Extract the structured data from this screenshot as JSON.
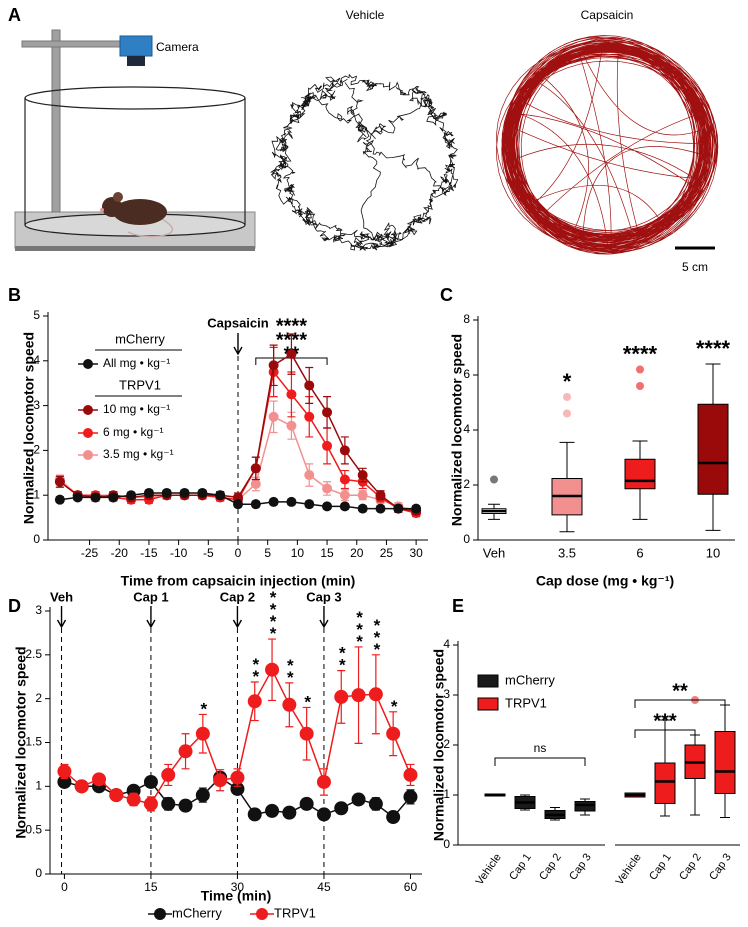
{
  "panel_labels": [
    "A",
    "B",
    "C",
    "D",
    "E"
  ],
  "panel_a": {
    "camera_label": "Camera",
    "titles": [
      "Vehicle",
      "Capsaicin"
    ],
    "scale_bar": "5 cm"
  },
  "chart_data": [
    {
      "type": "line",
      "xlabel": "Time from capsaicin injection (min)",
      "ylabel": "Normalized locomotor speed",
      "x": [
        -30,
        -27,
        -24,
        -21,
        -18,
        -15,
        -12,
        -9,
        -6,
        -3,
        0,
        3,
        6,
        9,
        12,
        15,
        18,
        21,
        24,
        27,
        30
      ],
      "xlim": [
        -32,
        32
      ],
      "xticks": [
        -25,
        -20,
        -15,
        -10,
        -5,
        0,
        5,
        10,
        15,
        20,
        25,
        30
      ],
      "ylim": [
        0,
        5
      ],
      "yticks": [
        0,
        1,
        2,
        3,
        4,
        5
      ],
      "legend_groups": [
        "mCherry",
        "TRPV1"
      ],
      "series": [
        {
          "name": "All mg • kg⁻¹",
          "color": "#111111",
          "values": [
            0.9,
            0.95,
            0.95,
            0.95,
            1.0,
            1.05,
            1.05,
            1.05,
            1.05,
            1.0,
            0.8,
            0.8,
            0.85,
            0.85,
            0.8,
            0.75,
            0.75,
            0.7,
            0.7,
            0.7,
            0.7
          ],
          "errors": [
            0.06,
            0.06,
            0.06,
            0.06,
            0.06,
            0.06,
            0.06,
            0.06,
            0.06,
            0.06,
            0.06,
            0.06,
            0.06,
            0.06,
            0.06,
            0.06,
            0.06,
            0.06,
            0.06,
            0.06,
            0.06
          ]
        },
        {
          "name": "10 mg • kg⁻¹",
          "color": "#9b0a0a",
          "values": [
            1.3,
            1.0,
            0.95,
            1.0,
            0.95,
            1.0,
            1.0,
            1.0,
            1.0,
            1.0,
            0.95,
            1.6,
            3.9,
            4.15,
            3.45,
            2.85,
            2.0,
            1.45,
            1.0,
            0.7,
            0.65
          ],
          "errors": [
            0.12,
            0.08,
            0.08,
            0.08,
            0.08,
            0.08,
            0.08,
            0.08,
            0.08,
            0.08,
            0.1,
            0.25,
            0.45,
            0.45,
            0.4,
            0.35,
            0.3,
            0.15,
            0.1,
            0.08,
            0.08
          ]
        },
        {
          "name": "6 mg • kg⁻¹",
          "color": "#ee1c1c",
          "values": [
            1.3,
            1.0,
            1.0,
            0.95,
            0.9,
            0.9,
            1.0,
            1.0,
            1.0,
            0.95,
            0.9,
            1.6,
            3.75,
            3.25,
            2.75,
            2.1,
            1.35,
            1.3,
            0.95,
            0.7,
            0.6
          ],
          "errors": [
            0.12,
            0.08,
            0.08,
            0.08,
            0.08,
            0.08,
            0.08,
            0.08,
            0.08,
            0.08,
            0.1,
            0.25,
            0.55,
            0.5,
            0.45,
            0.4,
            0.2,
            0.15,
            0.1,
            0.08,
            0.08
          ]
        },
        {
          "name": "3.5 mg • kg⁻¹",
          "color": "#f29090",
          "values": [
            1.35,
            1.0,
            1.0,
            1.0,
            0.95,
            0.95,
            1.0,
            1.0,
            1.0,
            0.95,
            0.9,
            1.25,
            2.75,
            2.55,
            1.45,
            1.15,
            1.0,
            1.0,
            0.9,
            0.75,
            0.65
          ],
          "errors": [
            0.1,
            0.08,
            0.08,
            0.08,
            0.08,
            0.08,
            0.08,
            0.08,
            0.08,
            0.08,
            0.1,
            0.15,
            0.35,
            0.3,
            0.25,
            0.15,
            0.12,
            0.1,
            0.08,
            0.08,
            0.08
          ]
        }
      ],
      "event": {
        "label": "Capsaicin",
        "x": 0
      },
      "significance": [
        {
          "text": "****",
          "color": "#9b0a0a"
        },
        {
          "text": "****",
          "color": "#ee1c1c"
        },
        {
          "text": "**",
          "color": "#f29090"
        }
      ],
      "bracket": [
        3,
        15
      ]
    },
    {
      "type": "box",
      "xlabel": "Cap dose (mg • kg⁻¹)",
      "ylabel": "Normalized locomotor speed",
      "categories": [
        "Veh",
        "3.5",
        "6",
        "10"
      ],
      "ylim": [
        0,
        8
      ],
      "yticks": [
        0,
        2,
        4,
        6,
        8
      ],
      "boxes": [
        {
          "low": 0.75,
          "q1": 1.0,
          "median": 1.05,
          "q3": 1.1,
          "high": 1.3,
          "outliers": [
            2.2
          ],
          "color": "#ffffff",
          "outlier_color": "#777777"
        },
        {
          "low": 0.3,
          "q1": 0.95,
          "median": 1.6,
          "q3": 2.2,
          "high": 3.55,
          "outliers": [
            4.6,
            5.2
          ],
          "color": "#f29090",
          "outlier_color": "#f8b8b8",
          "stars": "*",
          "stars_color": "#f29090"
        },
        {
          "low": 0.75,
          "q1": 1.9,
          "median": 2.15,
          "q3": 2.9,
          "high": 3.6,
          "outliers": [
            5.6,
            6.2
          ],
          "color": "#ee1c1c",
          "outlier_color": "#f07070",
          "stars": "****",
          "stars_color": "#ee1c1c"
        },
        {
          "low": 0.35,
          "q1": 1.7,
          "median": 2.8,
          "q3": 4.9,
          "high": 6.4,
          "color": "#9b0a0a",
          "stars": "****",
          "stars_color": "#9b0a0a"
        }
      ]
    },
    {
      "type": "line",
      "xlabel": "Time (min)",
      "ylabel": "Normalized locomotor speed",
      "x": [
        0,
        3,
        6,
        9,
        12,
        15,
        18,
        21,
        24,
        27,
        30,
        33,
        36,
        39,
        42,
        45,
        48,
        51,
        54,
        57,
        60
      ],
      "xlim": [
        -2.5,
        62
      ],
      "xticks": [
        0,
        15,
        30,
        45,
        60
      ],
      "ylim": [
        0,
        3
      ],
      "yticks": [
        0,
        0.5,
        1,
        1.5,
        2,
        2.5,
        3
      ],
      "series": [
        {
          "name": "mCherry",
          "color": "#111111",
          "values": [
            1.05,
            1.0,
            1.0,
            0.9,
            0.95,
            1.05,
            0.8,
            0.78,
            0.9,
            1.1,
            0.97,
            0.68,
            0.72,
            0.7,
            0.8,
            0.68,
            0.75,
            0.85,
            0.8,
            0.65,
            0.88
          ],
          "errors": [
            0.05,
            0.04,
            0.04,
            0.05,
            0.05,
            0.06,
            0.07,
            0.06,
            0.08,
            0.06,
            0.06,
            0.05,
            0.05,
            0.05,
            0.06,
            0.06,
            0.06,
            0.05,
            0.07,
            0.05,
            0.08
          ]
        },
        {
          "name": "TRPV1",
          "color": "#ee1c1c",
          "values": [
            1.17,
            1.0,
            1.08,
            0.9,
            0.85,
            0.8,
            1.13,
            1.4,
            1.6,
            1.07,
            1.1,
            1.97,
            2.33,
            1.93,
            1.6,
            1.05,
            2.02,
            2.04,
            2.05,
            1.6,
            1.13
          ],
          "errors": [
            0.08,
            0.05,
            0.05,
            0.06,
            0.07,
            0.08,
            0.12,
            0.2,
            0.22,
            0.12,
            0.1,
            0.22,
            0.35,
            0.25,
            0.3,
            0.15,
            0.3,
            0.55,
            0.45,
            0.25,
            0.12
          ]
        }
      ],
      "events": [
        {
          "label": "Veh",
          "x": -0.5
        },
        {
          "label": "Cap 1",
          "x": 15
        },
        {
          "label": "Cap 2",
          "x": 30
        },
        {
          "label": "Cap 3",
          "x": 45
        }
      ],
      "significance": [
        {
          "x": 24,
          "text": "*"
        },
        {
          "x": 33,
          "text": "**"
        },
        {
          "x": 36,
          "text": "****"
        },
        {
          "x": 39,
          "text": "**"
        },
        {
          "x": 42,
          "text": "*"
        },
        {
          "x": 48,
          "text": "**"
        },
        {
          "x": 51,
          "text": "***"
        },
        {
          "x": 54,
          "text": "***"
        },
        {
          "x": 57,
          "text": "*"
        }
      ]
    },
    {
      "type": "box",
      "ylabel": "Normalized locomotor speed",
      "categories": [
        "Vehicle",
        "Cap 1",
        "Cap 2",
        "Cap 3"
      ],
      "ylim": [
        0,
        4
      ],
      "yticks": [
        0,
        1,
        2,
        3,
        4
      ],
      "series": [
        {
          "name": "mCherry",
          "color": "#1a1a1a",
          "boxes": [
            {
              "low": 1.0,
              "q1": 1.0,
              "median": 1.0,
              "q3": 1.0,
              "high": 1.0
            },
            {
              "low": 0.7,
              "q1": 0.75,
              "median": 0.85,
              "q3": 0.95,
              "high": 1.0
            },
            {
              "low": 0.5,
              "q1": 0.55,
              "median": 0.6,
              "q3": 0.67,
              "high": 0.75
            },
            {
              "low": 0.6,
              "q1": 0.7,
              "median": 0.8,
              "q3": 0.85,
              "high": 0.92
            }
          ]
        },
        {
          "name": "TRPV1",
          "color": "#ee1c1c",
          "outlier_color": "#f08080",
          "boxes": [
            {
              "low": 0.97,
              "q1": 0.98,
              "median": 1.0,
              "q3": 1.02,
              "high": 1.03
            },
            {
              "low": 0.58,
              "q1": 0.85,
              "median": 1.27,
              "q3": 1.62,
              "high": 2.5
            },
            {
              "low": 0.6,
              "q1": 1.35,
              "median": 1.65,
              "q3": 1.98,
              "high": 2.2,
              "outliers": [
                2.9
              ]
            },
            {
              "low": 0.55,
              "q1": 1.05,
              "median": 1.47,
              "q3": 2.25,
              "high": 2.8
            }
          ]
        }
      ],
      "comparisons": [
        {
          "text": "ns",
          "color": "#111111"
        },
        {
          "text": "***",
          "color": "#ee1c1c"
        },
        {
          "text": "**",
          "color": "#ee1c1c"
        }
      ]
    }
  ]
}
